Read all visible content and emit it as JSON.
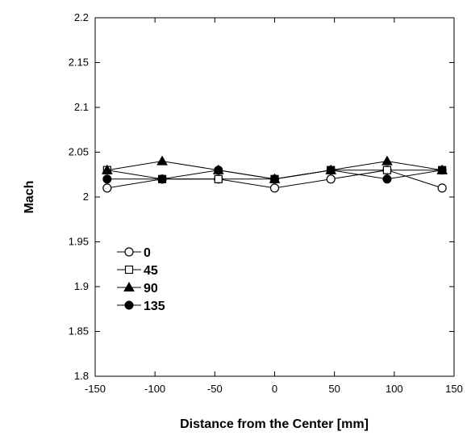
{
  "chart_data": {
    "type": "line",
    "title": "",
    "xlabel": "Distance from the Center [mm]",
    "ylabel": "Mach",
    "xlim": [
      -150,
      150
    ],
    "ylim": [
      1.8,
      2.2
    ],
    "x_ticks": [
      "-150",
      "-100",
      "-50",
      "0",
      "50",
      "100",
      "150"
    ],
    "y_ticks": [
      "1.8",
      "1.85",
      "1.9",
      "1.95",
      "2",
      "2.05",
      "2.1",
      "2.15",
      "2.2"
    ],
    "grid": false,
    "legend_position": "lower-left",
    "series": [
      {
        "name": "0",
        "marker": "circle-open",
        "x": [
          -140,
          -94,
          -47,
          0,
          47,
          94,
          140
        ],
        "y": [
          2.01,
          2.02,
          2.02,
          2.01,
          2.02,
          2.03,
          2.01
        ]
      },
      {
        "name": "45",
        "marker": "square-open",
        "x": [
          -140,
          -94,
          -47,
          0,
          47,
          94,
          140
        ],
        "y": [
          2.03,
          2.02,
          2.02,
          2.02,
          2.03,
          2.03,
          2.03
        ]
      },
      {
        "name": "90",
        "marker": "triangle-filled",
        "x": [
          -140,
          -94,
          -47,
          0,
          47,
          94,
          140
        ],
        "y": [
          2.03,
          2.04,
          2.03,
          2.02,
          2.03,
          2.04,
          2.03
        ]
      },
      {
        "name": "135",
        "marker": "circle-filled",
        "x": [
          -140,
          -94,
          -47,
          0,
          47,
          94,
          140
        ],
        "y": [
          2.02,
          2.02,
          2.03,
          2.02,
          2.03,
          2.02,
          2.03
        ]
      }
    ],
    "line_color": "#000000"
  }
}
